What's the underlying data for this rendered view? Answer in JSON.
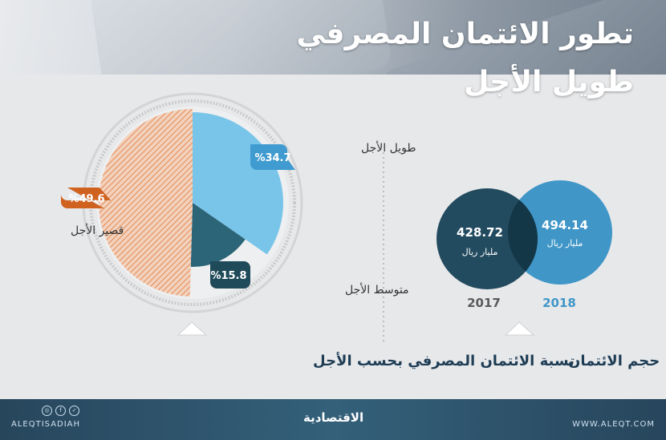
{
  "header": {
    "title_line1": "تطور الائتمان المصرفي",
    "title_line2": "طويل الأجل"
  },
  "colors": {
    "long_term": "#79c5ea",
    "long_term_badge": "#3f9bd0",
    "medium_term": "#2c6577",
    "medium_term_badge": "#1f4a5a",
    "short_term": "#e08a55",
    "short_term_badge": "#d0621f",
    "circle_2017": "#1b4559",
    "circle_2018": "#3f96c7",
    "year_2017_text": "#5a5a5a",
    "year_2018_text": "#3f96c7"
  },
  "chart_data": [
    {
      "type": "pie",
      "title": "نسبة الائتمان المصرفي بحسب الأجل",
      "slices": [
        {
          "label": "طويل الأجل",
          "value": 34.7,
          "badge": "%34.7"
        },
        {
          "label": "متوسط الأجل",
          "value": 15.8,
          "badge": "%15.8"
        },
        {
          "label": "قصير الأجل",
          "value": 49.6,
          "badge": "%49.6"
        }
      ]
    },
    {
      "type": "bubble",
      "title": "حجم الائتمان",
      "series": [
        {
          "year": "2017",
          "value": 428.72,
          "value_label": "428.72",
          "unit": "مليار ريال"
        },
        {
          "year": "2018",
          "value": 494.14,
          "value_label": "494.14",
          "unit": "مليار ريال"
        }
      ]
    }
  ],
  "footer": {
    "handle": "ALEQTISADIAH",
    "brand": "الاقتصادية",
    "website": "WWW.ALEQT.COM",
    "social_icons": [
      "instagram-icon",
      "facebook-icon",
      "twitter-icon"
    ]
  }
}
